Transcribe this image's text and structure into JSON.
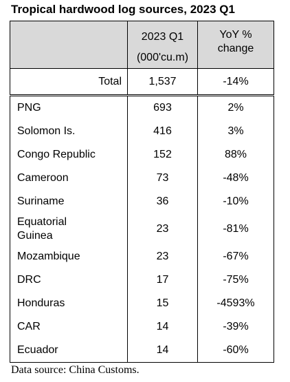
{
  "title": "Tropical hardwood log sources, 2023 Q1",
  "table": {
    "header": [
      [
        "2023 Q1",
        "(000'cu.m)"
      ],
      [
        "YoY %",
        "change"
      ]
    ],
    "total": [
      "Total",
      "1,537",
      "-14%"
    ],
    "rows": [
      [
        "PNG",
        "693",
        "2%"
      ],
      [
        "Solomon Is.",
        "416",
        "3%"
      ],
      [
        "Congo Republic",
        "152",
        "88%"
      ],
      [
        "Cameroon",
        "73",
        "-48%"
      ],
      [
        "Suriname",
        "36",
        "-10%"
      ],
      [
        [
          "Equatorial",
          "Guinea"
        ],
        "23",
        "-81%"
      ],
      [
        "Mozambique",
        "23",
        "-67%"
      ],
      [
        "DRC",
        "17",
        "-75%"
      ],
      [
        "Honduras",
        "15",
        "-4593%"
      ],
      [
        "CAR",
        "14",
        "-39%"
      ],
      [
        "Ecuador",
        "14",
        "-60%"
      ]
    ]
  },
  "source": "Data source: China Customs."
}
